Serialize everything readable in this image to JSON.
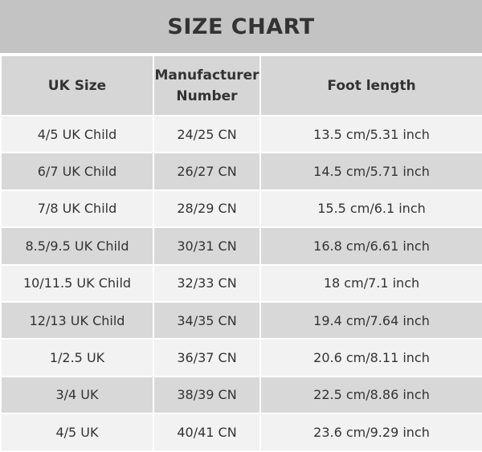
{
  "title": "SIZE CHART",
  "headers": [
    "UK Size",
    "Manufacturer Number",
    "Foot length"
  ],
  "rows": [
    [
      "4/5 UK Child",
      "24/25 CN",
      "13.5 cm/5.31 inch"
    ],
    [
      "6/7 UK Child",
      "26/27 CN",
      "14.5 cm/5.71 inch"
    ],
    [
      "7/8 UK Child",
      "28/29 CN",
      "15.5 cm/6.1 inch"
    ],
    [
      "8.5/9.5 UK Child",
      "30/31 CN",
      "16.8 cm/6.61 inch"
    ],
    [
      "10/11.5 UK Child",
      "32/33 CN",
      "18 cm/7.1 inch"
    ],
    [
      "12/13 UK Child",
      "34/35 CN",
      "19.4 cm/7.64 inch"
    ],
    [
      "1/2.5 UK",
      "36/37 CN",
      "20.6 cm/8.11 inch"
    ],
    [
      "3/4 UK",
      "38/39 CN",
      "22.5 cm/8.86 inch"
    ],
    [
      "4/5 UK",
      "40/41 CN",
      "23.6 cm/9.29 inch"
    ]
  ],
  "colors": {
    "title_bg": "#c3c3c3",
    "header_bg": "#d6d6d6",
    "row_light": "#f2f2f2",
    "row_dark": "#d8d8d8",
    "text": "#333333"
  }
}
